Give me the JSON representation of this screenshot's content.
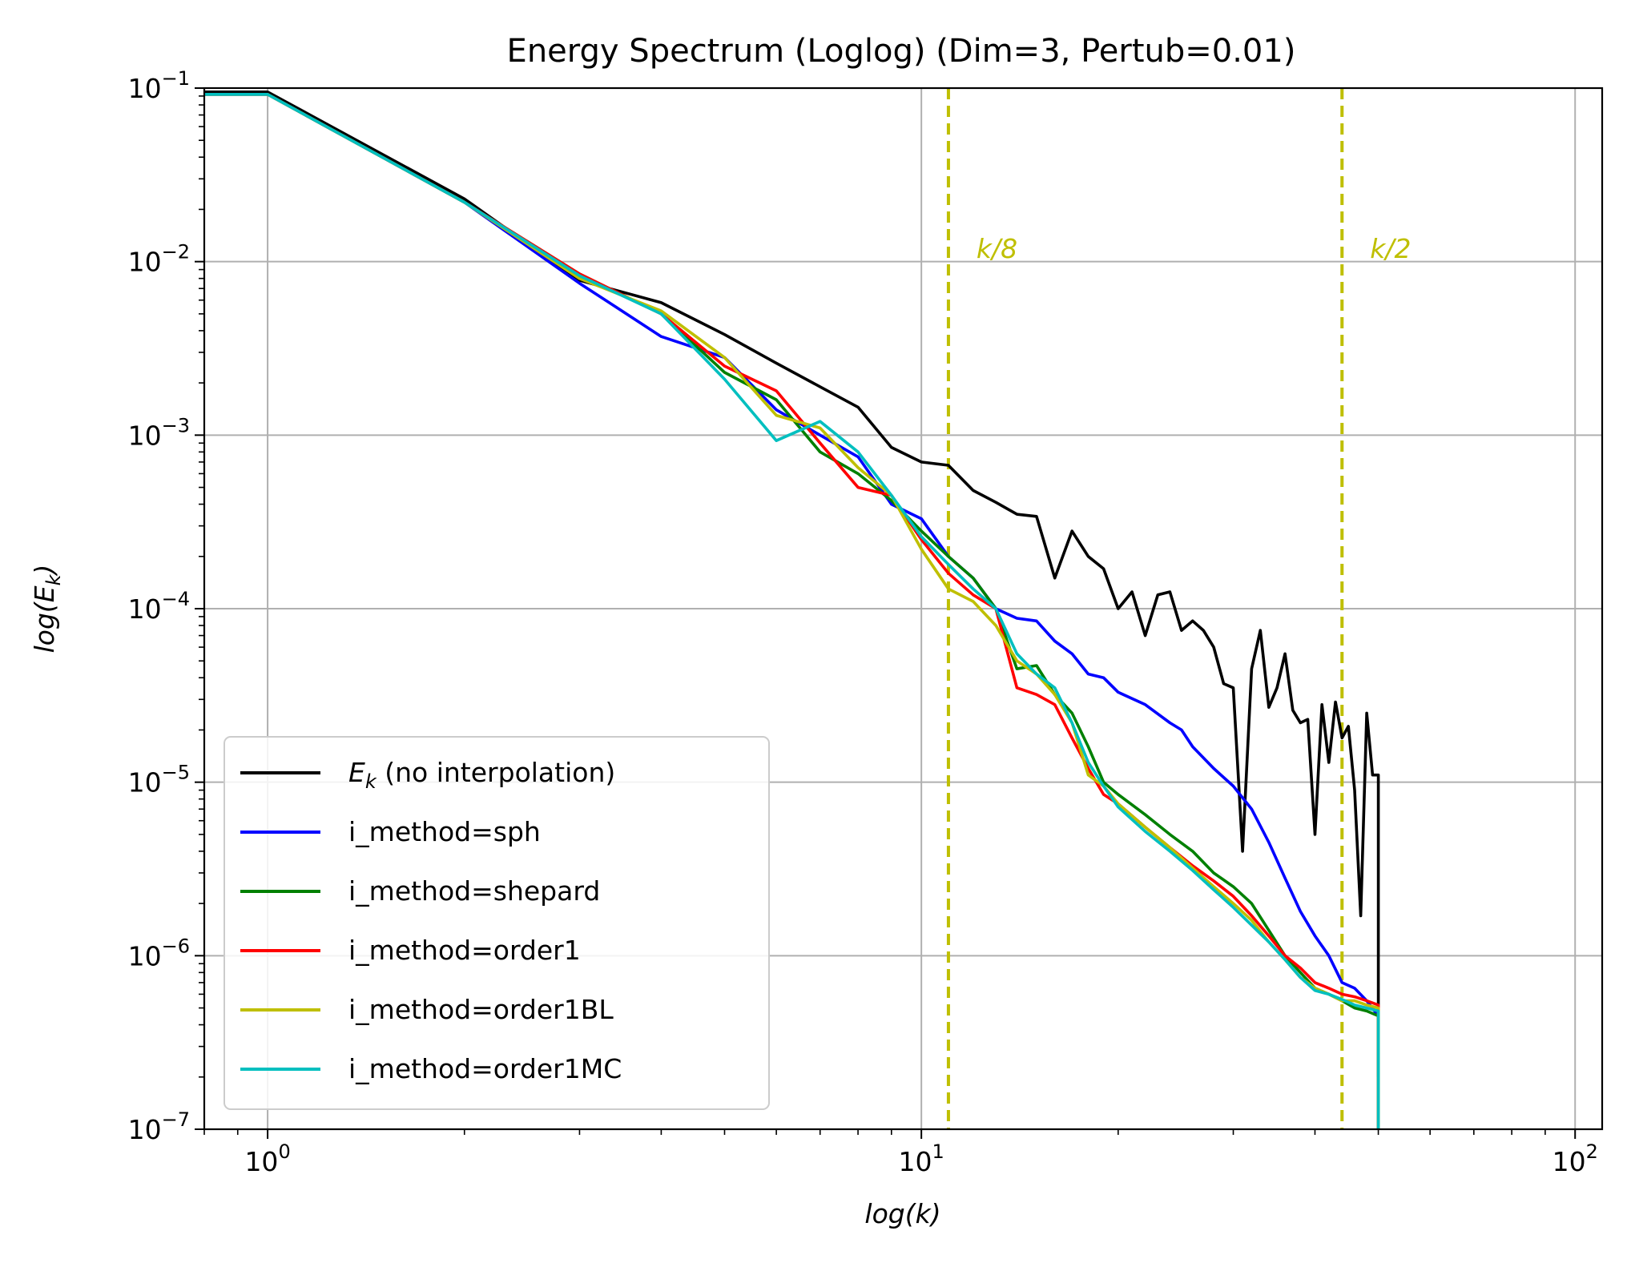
{
  "chart_data": {
    "type": "line",
    "title": "Energy Spectrum (Loglog) (Dim=3, Pertub=0.01)",
    "xlabel": "log(k)",
    "ylabel": "log(E_k)",
    "xscale": "log",
    "yscale": "log",
    "xlim": [
      0.8,
      110
    ],
    "ylim": [
      1e-07,
      0.1
    ],
    "grid": true,
    "legend_position": "lower left",
    "x_ticks": [
      {
        "value": 1,
        "base": "10",
        "exp": "0"
      },
      {
        "value": 10,
        "base": "10",
        "exp": "1"
      },
      {
        "value": 100,
        "base": "10",
        "exp": "2"
      }
    ],
    "y_ticks": [
      {
        "value": 0.1,
        "base": "10",
        "exp": "−1"
      },
      {
        "value": 0.01,
        "base": "10",
        "exp": "−2"
      },
      {
        "value": 0.001,
        "base": "10",
        "exp": "−3"
      },
      {
        "value": 0.0001,
        "base": "10",
        "exp": "−4"
      },
      {
        "value": 1e-05,
        "base": "10",
        "exp": "−5"
      },
      {
        "value": 1e-06,
        "base": "10",
        "exp": "−6"
      },
      {
        "value": 1e-07,
        "base": "10",
        "exp": "−7"
      }
    ],
    "vlines": [
      {
        "x": 11,
        "label": "k/8",
        "color": "#bfbf00"
      },
      {
        "x": 44,
        "label": "k/2",
        "color": "#bfbf00"
      }
    ],
    "series": [
      {
        "name": "E_k (no interpolation)",
        "color": "#000000",
        "points": [
          [
            0.8,
            0.095
          ],
          [
            1,
            0.095
          ],
          [
            2,
            0.023
          ],
          [
            3,
            0.0078
          ],
          [
            4,
            0.0058
          ],
          [
            5,
            0.0038
          ],
          [
            6,
            0.0026
          ],
          [
            7,
            0.0019
          ],
          [
            8,
            0.00145
          ],
          [
            9,
            0.00085
          ],
          [
            10,
            0.0007
          ],
          [
            11,
            0.00067
          ],
          [
            12,
            0.00048
          ],
          [
            13,
            0.00041
          ],
          [
            14,
            0.00035
          ],
          [
            15,
            0.00034
          ],
          [
            16,
            0.00015
          ],
          [
            17,
            0.00028
          ],
          [
            18,
            0.0002
          ],
          [
            19,
            0.00017
          ],
          [
            20,
            0.0001
          ],
          [
            21,
            0.000125
          ],
          [
            22,
            7e-05
          ],
          [
            23,
            0.00012
          ],
          [
            24,
            0.000125
          ],
          [
            25,
            7.5e-05
          ],
          [
            26,
            8.5e-05
          ],
          [
            27,
            7.5e-05
          ],
          [
            28,
            6e-05
          ],
          [
            29,
            3.7e-05
          ],
          [
            30,
            3.5e-05
          ],
          [
            31,
            4e-06
          ],
          [
            32,
            4.5e-05
          ],
          [
            33,
            7.5e-05
          ],
          [
            34,
            2.7e-05
          ],
          [
            35,
            3.5e-05
          ],
          [
            36,
            5.5e-05
          ],
          [
            37,
            2.6e-05
          ],
          [
            38,
            2.2e-05
          ],
          [
            39,
            2.3e-05
          ],
          [
            40,
            5e-06
          ],
          [
            41,
            2.8e-05
          ],
          [
            42,
            1.3e-05
          ],
          [
            43,
            2.9e-05
          ],
          [
            44,
            1.8e-05
          ],
          [
            45,
            2.1e-05
          ],
          [
            46,
            9e-06
          ],
          [
            47,
            1.7e-06
          ],
          [
            48,
            2.5e-05
          ],
          [
            49,
            1.1e-05
          ],
          [
            50,
            1.1e-05
          ],
          [
            50,
            2e-07
          ]
        ]
      },
      {
        "name": "i_method=sph",
        "color": "#0000ff",
        "points": [
          [
            0.8,
            0.092
          ],
          [
            1,
            0.092
          ],
          [
            2,
            0.022
          ],
          [
            3,
            0.0075
          ],
          [
            4,
            0.0037
          ],
          [
            5,
            0.0028
          ],
          [
            6,
            0.0014
          ],
          [
            7,
            0.001
          ],
          [
            8,
            0.00075
          ],
          [
            9,
            0.0004
          ],
          [
            10,
            0.00033
          ],
          [
            11,
            0.0002
          ],
          [
            12,
            0.00015
          ],
          [
            13,
            0.0001
          ],
          [
            14,
            8.8e-05
          ],
          [
            15,
            8.5e-05
          ],
          [
            16,
            6.5e-05
          ],
          [
            17,
            5.5e-05
          ],
          [
            18,
            4.2e-05
          ],
          [
            19,
            4e-05
          ],
          [
            20,
            3.3e-05
          ],
          [
            22,
            2.8e-05
          ],
          [
            24,
            2.2e-05
          ],
          [
            25,
            2e-05
          ],
          [
            26,
            1.6e-05
          ],
          [
            28,
            1.2e-05
          ],
          [
            30,
            9.5e-06
          ],
          [
            32,
            7e-06
          ],
          [
            34,
            4.5e-06
          ],
          [
            36,
            2.8e-06
          ],
          [
            38,
            1.8e-06
          ],
          [
            40,
            1.3e-06
          ],
          [
            42,
            1e-06
          ],
          [
            44,
            7e-07
          ],
          [
            46,
            6.5e-07
          ],
          [
            48,
            5.5e-07
          ],
          [
            50,
            4.5e-07
          ],
          [
            50,
            1e-07
          ]
        ]
      },
      {
        "name": "i_method=shepard",
        "color": "#008000",
        "points": [
          [
            0.8,
            0.092
          ],
          [
            1,
            0.092
          ],
          [
            2,
            0.022
          ],
          [
            3,
            0.0085
          ],
          [
            4,
            0.005
          ],
          [
            5,
            0.0023
          ],
          [
            6,
            0.0016
          ],
          [
            7,
            0.0008
          ],
          [
            8,
            0.0006
          ],
          [
            9,
            0.00042
          ],
          [
            10,
            0.00028
          ],
          [
            11,
            0.0002
          ],
          [
            12,
            0.00015
          ],
          [
            13,
            0.0001
          ],
          [
            14,
            4.5e-05
          ],
          [
            15,
            4.7e-05
          ],
          [
            16,
            3.2e-05
          ],
          [
            17,
            2.5e-05
          ],
          [
            18,
            1.6e-05
          ],
          [
            19,
            1e-05
          ],
          [
            20,
            8.5e-06
          ],
          [
            22,
            6.5e-06
          ],
          [
            24,
            5e-06
          ],
          [
            26,
            4e-06
          ],
          [
            28,
            3e-06
          ],
          [
            30,
            2.5e-06
          ],
          [
            32,
            2e-06
          ],
          [
            34,
            1.4e-06
          ],
          [
            36,
            1e-06
          ],
          [
            38,
            8e-07
          ],
          [
            40,
            6.5e-07
          ],
          [
            42,
            6e-07
          ],
          [
            44,
            5.5e-07
          ],
          [
            46,
            5e-07
          ],
          [
            48,
            4.8e-07
          ],
          [
            50,
            4.5e-07
          ],
          [
            50,
            1e-07
          ]
        ]
      },
      {
        "name": "i_method=order1",
        "color": "#ff0000",
        "points": [
          [
            0.8,
            0.092
          ],
          [
            1,
            0.092
          ],
          [
            2,
            0.022
          ],
          [
            3,
            0.0085
          ],
          [
            4,
            0.005
          ],
          [
            5,
            0.0025
          ],
          [
            6,
            0.0018
          ],
          [
            7,
            0.0009
          ],
          [
            8,
            0.0005
          ],
          [
            9,
            0.00045
          ],
          [
            10,
            0.00025
          ],
          [
            11,
            0.00016
          ],
          [
            12,
            0.00012
          ],
          [
            13,
            0.0001
          ],
          [
            14,
            3.5e-05
          ],
          [
            15,
            3.2e-05
          ],
          [
            16,
            2.8e-05
          ],
          [
            17,
            1.8e-05
          ],
          [
            18,
            1.2e-05
          ],
          [
            19,
            8.5e-06
          ],
          [
            20,
            7.5e-06
          ],
          [
            22,
            5.5e-06
          ],
          [
            24,
            4.2e-06
          ],
          [
            26,
            3.3e-06
          ],
          [
            28,
            2.7e-06
          ],
          [
            30,
            2.2e-06
          ],
          [
            32,
            1.7e-06
          ],
          [
            34,
            1.3e-06
          ],
          [
            36,
            1e-06
          ],
          [
            38,
            8.5e-07
          ],
          [
            40,
            7e-07
          ],
          [
            42,
            6.5e-07
          ],
          [
            44,
            6e-07
          ],
          [
            46,
            5.8e-07
          ],
          [
            48,
            5.5e-07
          ],
          [
            50,
            5.2e-07
          ],
          [
            50,
            1e-07
          ]
        ]
      },
      {
        "name": "i_method=order1BL",
        "color": "#bfbf00",
        "points": [
          [
            0.8,
            0.092
          ],
          [
            1,
            0.092
          ],
          [
            2,
            0.022
          ],
          [
            3,
            0.008
          ],
          [
            4,
            0.0052
          ],
          [
            5,
            0.0028
          ],
          [
            6,
            0.0013
          ],
          [
            7,
            0.0011
          ],
          [
            8,
            0.00065
          ],
          [
            9,
            0.00045
          ],
          [
            10,
            0.00022
          ],
          [
            11,
            0.00013
          ],
          [
            12,
            0.00011
          ],
          [
            13,
            8e-05
          ],
          [
            14,
            5e-05
          ],
          [
            15,
            4.2e-05
          ],
          [
            16,
            3.2e-05
          ],
          [
            17,
            2.2e-05
          ],
          [
            18,
            1.1e-05
          ],
          [
            19,
            9.5e-06
          ],
          [
            20,
            7.5e-06
          ],
          [
            22,
            5.5e-06
          ],
          [
            24,
            4.2e-06
          ],
          [
            26,
            3.2e-06
          ],
          [
            28,
            2.5e-06
          ],
          [
            30,
            2e-06
          ],
          [
            32,
            1.6e-06
          ],
          [
            34,
            1.2e-06
          ],
          [
            36,
            9.5e-07
          ],
          [
            38,
            7.5e-07
          ],
          [
            40,
            6.5e-07
          ],
          [
            42,
            6e-07
          ],
          [
            44,
            5.5e-07
          ],
          [
            46,
            5.5e-07
          ],
          [
            48,
            5.2e-07
          ],
          [
            50,
            5e-07
          ],
          [
            50,
            1e-07
          ]
        ]
      },
      {
        "name": "i_method=order1MC",
        "color": "#00bfbf",
        "points": [
          [
            0.8,
            0.092
          ],
          [
            1,
            0.092
          ],
          [
            2,
            0.022
          ],
          [
            3,
            0.0083
          ],
          [
            4,
            0.005
          ],
          [
            5,
            0.0021
          ],
          [
            6,
            0.00093
          ],
          [
            7,
            0.0012
          ],
          [
            8,
            0.0008
          ],
          [
            9,
            0.00045
          ],
          [
            10,
            0.00026
          ],
          [
            11,
            0.00018
          ],
          [
            12,
            0.00013
          ],
          [
            13,
            0.0001
          ],
          [
            14,
            5.5e-05
          ],
          [
            15,
            4.2e-05
          ],
          [
            16,
            3.5e-05
          ],
          [
            17,
            2.2e-05
          ],
          [
            18,
            1.3e-05
          ],
          [
            19,
            9.5e-06
          ],
          [
            20,
            7.2e-06
          ],
          [
            22,
            5.2e-06
          ],
          [
            24,
            4e-06
          ],
          [
            26,
            3.1e-06
          ],
          [
            28,
            2.4e-06
          ],
          [
            30,
            1.9e-06
          ],
          [
            32,
            1.5e-06
          ],
          [
            34,
            1.2e-06
          ],
          [
            36,
            9.5e-07
          ],
          [
            38,
            7.5e-07
          ],
          [
            40,
            6.3e-07
          ],
          [
            42,
            6e-07
          ],
          [
            44,
            5.6e-07
          ],
          [
            46,
            5.2e-07
          ],
          [
            48,
            5e-07
          ],
          [
            50,
            4.8e-07
          ],
          [
            50,
            1e-07
          ]
        ]
      }
    ]
  }
}
